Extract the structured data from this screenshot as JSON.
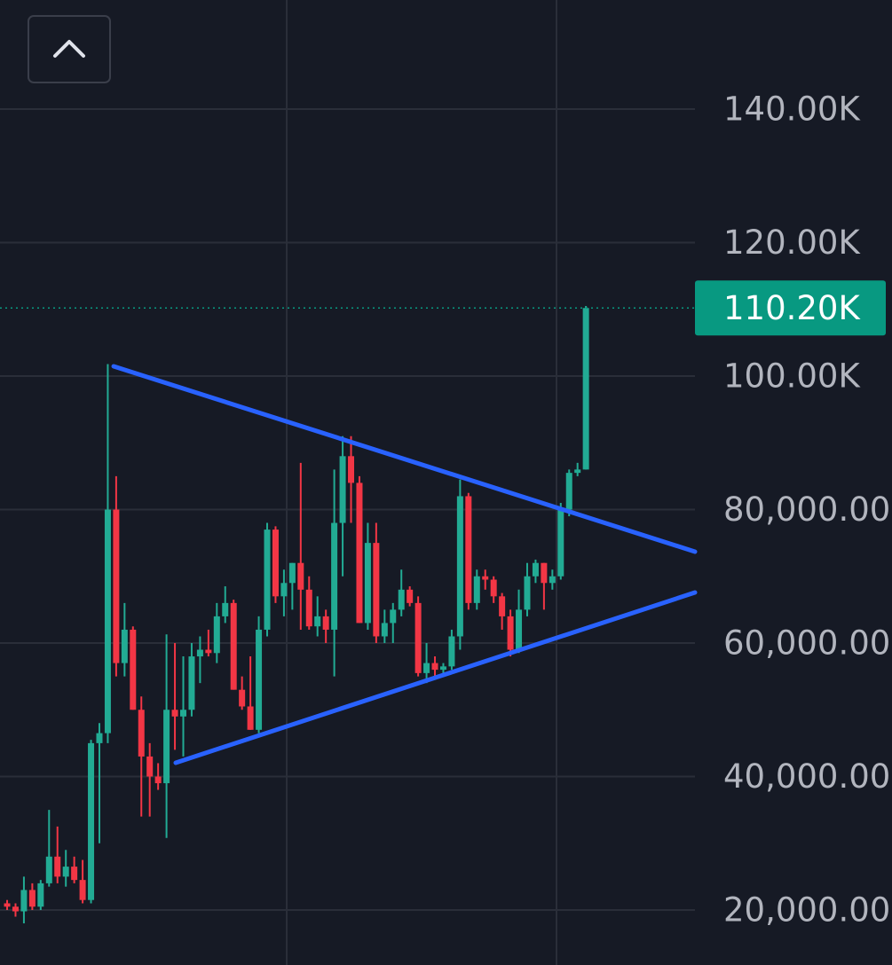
{
  "chart_data": {
    "type": "candlestick",
    "up_color": "#22ab94",
    "down_color": "#f23645",
    "open": [
      21000,
      20500,
      19800,
      23000,
      20500,
      24000,
      28000,
      25000,
      26500,
      24500,
      21500,
      45000,
      46500,
      80000,
      57000,
      62000,
      50000,
      43000,
      40000,
      39000,
      50000,
      49000,
      50000,
      58000,
      59000,
      58500,
      64000,
      66000,
      53000,
      50500,
      47000,
      62000,
      77000,
      67000,
      69000,
      72000,
      68000,
      62500,
      64000,
      62000,
      78000,
      88000,
      84000,
      63000,
      75000,
      61000,
      63000,
      65000,
      68000,
      66000,
      55500,
      57000,
      56000,
      56500,
      61000,
      82000,
      66000,
      70000,
      69500,
      67000,
      64000,
      59000,
      65000,
      70000,
      72000,
      69000,
      70000,
      80000,
      85500,
      86000
    ],
    "high": [
      21500,
      21000,
      25000,
      24000,
      24500,
      35000,
      32500,
      29000,
      28000,
      27500,
      45500,
      48000,
      101800,
      85000,
      66000,
      62500,
      52000,
      45000,
      42000,
      61300,
      60000,
      58000,
      60000,
      61000,
      62000,
      66000,
      68500,
      66500,
      55000,
      58000,
      64000,
      78000,
      77500,
      71000,
      72000,
      87000,
      70000,
      67000,
      65000,
      86000,
      91000,
      91000,
      85000,
      78000,
      78000,
      65000,
      66000,
      71000,
      68500,
      67000,
      60000,
      58000,
      57000,
      62000,
      84500,
      82500,
      71000,
      71000,
      70000,
      67500,
      65000,
      68000,
      72000,
      72500,
      72000,
      71000,
      81000,
      86000,
      87000,
      110500
    ],
    "low": [
      20000,
      19000,
      18000,
      20000,
      20000,
      23500,
      24000,
      23500,
      24000,
      21000,
      21000,
      30000,
      45000,
      55000,
      55000,
      50000,
      34000,
      34000,
      38000,
      30800,
      44000,
      43000,
      49000,
      54000,
      58000,
      57000,
      63000,
      53000,
      50000,
      47000,
      46500,
      61000,
      66000,
      64000,
      65000,
      62000,
      62000,
      61000,
      60000,
      55000,
      70000,
      78000,
      63000,
      62000,
      60000,
      60000,
      60000,
      64000,
      65500,
      55000,
      54000,
      55000,
      55000,
      56000,
      59000,
      65000,
      65000,
      68000,
      66000,
      62000,
      58000,
      58500,
      64000,
      69000,
      65000,
      68000,
      69500,
      79000,
      85000,
      86000
    ],
    "close": [
      20500,
      19800,
      23000,
      20500,
      24000,
      28000,
      25000,
      26500,
      24500,
      21500,
      45000,
      46500,
      80000,
      57000,
      62000,
      50000,
      43000,
      40000,
      39000,
      50000,
      49000,
      50000,
      58000,
      59000,
      58500,
      64000,
      66000,
      53000,
      50500,
      47000,
      62000,
      77000,
      67000,
      69000,
      72000,
      68000,
      62500,
      64000,
      62000,
      78000,
      88000,
      84000,
      63000,
      75000,
      61000,
      63000,
      65000,
      68000,
      66000,
      55500,
      57000,
      56000,
      56500,
      61000,
      82000,
      66000,
      70000,
      69500,
      67000,
      64000,
      59000,
      65000,
      70000,
      72000,
      69000,
      70000,
      80000,
      85500,
      86000,
      110200
    ],
    "xlim": [
      -0.85,
      82
    ],
    "ylim": [
      11760,
      156350
    ],
    "yticks": [
      {
        "value": 140000,
        "label": "140.00K"
      },
      {
        "value": 120000,
        "label": "120.00K"
      },
      {
        "value": 100000,
        "label": "100.00K"
      },
      {
        "value": 80000,
        "label": "80,000.00"
      },
      {
        "value": 60000,
        "label": "60,000.00"
      },
      {
        "value": 40000,
        "label": "40,000.00"
      },
      {
        "value": 20000,
        "label": "20,000.00"
      }
    ],
    "grid": true,
    "last_price": {
      "value": 110200,
      "label": "110.20K",
      "color": "#089981"
    },
    "trendlines": [
      {
        "color": "#2962ff",
        "x": [
          12.7,
          82
        ],
        "y": [
          101460,
          73690
        ]
      },
      {
        "color": "#2962ff",
        "x": [
          20.1,
          82
        ],
        "y": [
          42060,
          67575
        ]
      }
    ]
  }
}
